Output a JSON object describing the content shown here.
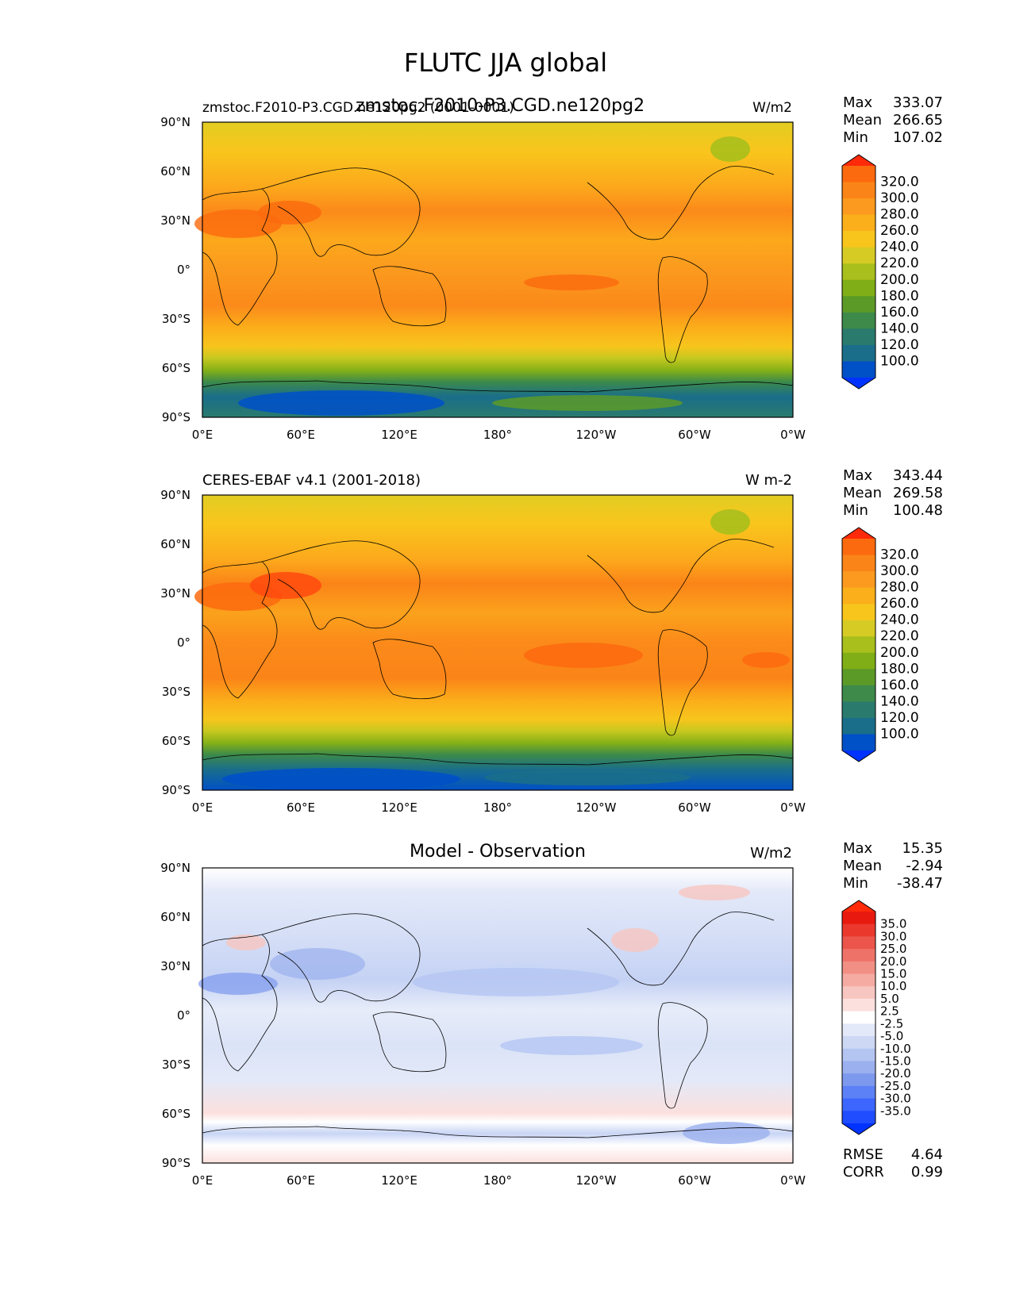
{
  "figure_title": "FLUTC JJA global",
  "colors": {
    "abs_scale": [
      "#0033ff",
      "#0050c8",
      "#1a6e8a",
      "#2a7a6e",
      "#3d8a4a",
      "#5c9a28",
      "#7fae16",
      "#a8bf1c",
      "#d6cb24",
      "#f8c51c",
      "#fbaf1a",
      "#fb9a1e",
      "#fb8418",
      "#fb6a0e",
      "#ff2a0a"
    ],
    "diff_scale": [
      "#0033ff",
      "#1f4dff",
      "#3d66ff",
      "#5c80f5",
      "#7d99ee",
      "#9bb0ee",
      "#b4c5f2",
      "#cdd8f5",
      "#e3e9f8",
      "#ffffff",
      "#fbe0de",
      "#f8c6c0",
      "#f5aba2",
      "#f28f85",
      "#ef7268",
      "#ec554b",
      "#ea382d",
      "#e81a0f",
      "#ff2a0a"
    ]
  },
  "chart_data": [
    {
      "type": "heatmap",
      "subtitle_left": "zmstoc.F2010-P3.CGD.ne120pg2 (0001-0001)",
      "subtitle_center": "zmstoc.F2010-P3.CGD.ne120pg2",
      "units": "W/m2",
      "stats": {
        "max_label": "Max",
        "max": "333.07",
        "mean_label": "Mean",
        "mean": "266.65",
        "min_label": "Min",
        "min": "107.02"
      },
      "colorbar_ticks": [
        "320.0",
        "300.0",
        "280.0",
        "260.0",
        "240.0",
        "220.0",
        "200.0",
        "180.0",
        "160.0",
        "140.0",
        "120.0",
        "100.0"
      ],
      "yticks": [
        "90°N",
        "60°N",
        "30°N",
        "0°",
        "30°S",
        "60°S",
        "90°S"
      ],
      "xticks": [
        "0°E",
        "60°E",
        "120°E",
        "180°",
        "120°W",
        "60°W",
        "0°W"
      ],
      "lat_range": [
        -90,
        90
      ],
      "lon_range": [
        0,
        360
      ]
    },
    {
      "type": "heatmap",
      "subtitle_left": "CERES-EBAF v4.1 (2001-2018)",
      "subtitle_center": "",
      "units": "W m-2",
      "stats": {
        "max_label": "Max",
        "max": "343.44",
        "mean_label": "Mean",
        "mean": "269.58",
        "min_label": "Min",
        "min": "100.48"
      },
      "colorbar_ticks": [
        "320.0",
        "300.0",
        "280.0",
        "260.0",
        "240.0",
        "220.0",
        "200.0",
        "180.0",
        "160.0",
        "140.0",
        "120.0",
        "100.0"
      ],
      "yticks": [
        "90°N",
        "60°N",
        "30°N",
        "0°",
        "30°S",
        "60°S",
        "90°S"
      ],
      "xticks": [
        "0°E",
        "60°E",
        "120°E",
        "180°",
        "120°W",
        "60°W",
        "0°W"
      ],
      "lat_range": [
        -90,
        90
      ],
      "lon_range": [
        0,
        360
      ]
    },
    {
      "type": "heatmap",
      "subtitle_left": "",
      "subtitle_center": "Model - Observation",
      "units": "W/m2",
      "stats": {
        "max_label": "Max",
        "max": "15.35",
        "mean_label": "Mean",
        "mean": "-2.94",
        "min_label": "Min",
        "min": "-38.47"
      },
      "colorbar_ticks": [
        "35.0",
        "30.0",
        "25.0",
        "20.0",
        "15.0",
        "10.0",
        "5.0",
        "2.5",
        "-2.5",
        "-5.0",
        "-10.0",
        "-15.0",
        "-20.0",
        "-25.0",
        "-30.0",
        "-35.0"
      ],
      "yticks": [
        "90°N",
        "60°N",
        "30°N",
        "0°",
        "30°S",
        "60°S",
        "90°S"
      ],
      "xticks": [
        "0°E",
        "60°E",
        "120°E",
        "180°",
        "120°W",
        "60°W",
        "0°W"
      ],
      "lat_range": [
        -90,
        90
      ],
      "lon_range": [
        0,
        360
      ],
      "rmse_label": "RMSE",
      "rmse": "4.64",
      "corr_label": "CORR",
      "corr": "0.99"
    }
  ]
}
